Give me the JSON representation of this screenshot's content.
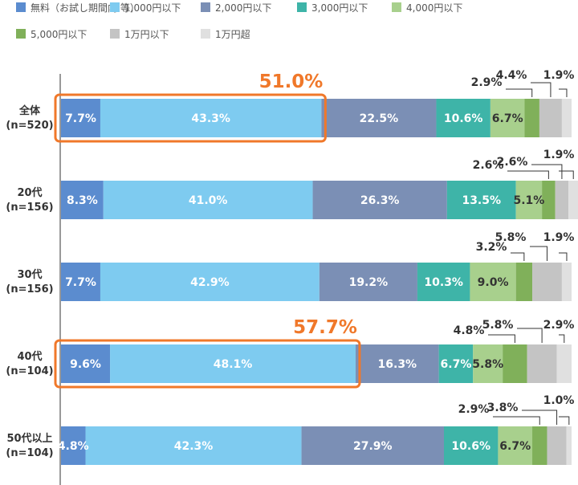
{
  "chart_data": {
    "type": "bar",
    "orientation": "horizontal",
    "stacked": true,
    "percent": true,
    "title": "",
    "xlabel": "",
    "ylabel": "",
    "xlim": [
      0,
      100
    ],
    "legend_position": "top",
    "grid": false,
    "categories": [
      [
        "全体",
        "(n=520)"
      ],
      [
        "20代",
        "(n=156)"
      ],
      [
        "30代",
        "(n=156)"
      ],
      [
        "40代",
        "(n=104)"
      ],
      [
        "50代以上",
        "(n=104)"
      ]
    ],
    "series": [
      {
        "name": "無料（お試し期間内 等）",
        "color": "#5b8ccf",
        "values": [
          7.7,
          8.3,
          7.7,
          9.6,
          4.8
        ]
      },
      {
        "name": "1,000円以下",
        "color": "#7ecbf0",
        "values": [
          43.3,
          41.0,
          42.9,
          48.1,
          42.3
        ]
      },
      {
        "name": "2,000円以下",
        "color": "#7b8fb5",
        "values": [
          22.5,
          26.3,
          19.2,
          16.3,
          27.9
        ]
      },
      {
        "name": "3,000円以下",
        "color": "#3eb4a8",
        "values": [
          10.6,
          13.5,
          10.3,
          6.7,
          10.6
        ]
      },
      {
        "name": "4,000円以下",
        "color": "#a8d08d",
        "values": [
          6.7,
          5.1,
          9.0,
          5.8,
          6.7
        ]
      },
      {
        "name": "5,000円以下",
        "color": "#80b05a",
        "values": [
          2.9,
          2.6,
          3.2,
          4.8,
          2.9
        ]
      },
      {
        "name": "1万円以下",
        "color": "#c4c4c4",
        "values": [
          4.4,
          2.6,
          5.8,
          5.8,
          3.8
        ]
      },
      {
        "name": "1万円超",
        "color": "#e0e0e0",
        "values": [
          1.9,
          1.9,
          1.9,
          2.9,
          1.0
        ]
      }
    ],
    "highlights": [
      {
        "category_index": 0,
        "label": "51.0%"
      },
      {
        "category_index": 3,
        "label": "57.7%"
      }
    ]
  }
}
